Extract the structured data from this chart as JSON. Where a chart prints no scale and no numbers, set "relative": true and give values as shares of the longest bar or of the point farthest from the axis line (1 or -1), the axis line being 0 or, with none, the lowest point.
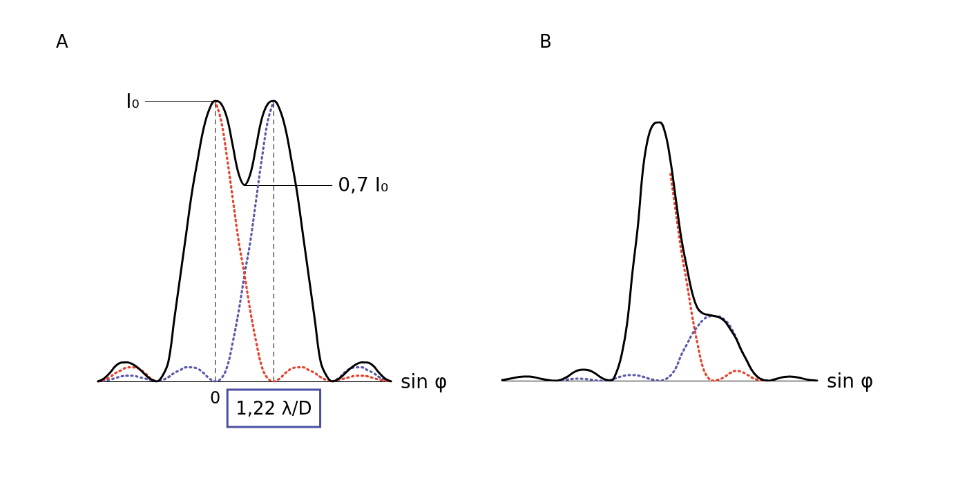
{
  "chart_data": [
    {
      "type": "line",
      "title": "A",
      "xlabel": "sin φ",
      "relative": true,
      "marker": "none",
      "categories": [
        null,
        null,
        null,
        null,
        null,
        null,
        null,
        null,
        null,
        null,
        null,
        null,
        null,
        null,
        null,
        null,
        null,
        null,
        null,
        null,
        "0",
        null,
        null,
        null,
        null,
        null,
        null,
        null,
        null,
        null,
        "1,22 λ/D",
        null,
        null,
        null,
        null,
        null,
        null,
        null,
        null,
        null,
        null,
        null,
        null,
        null,
        null,
        null,
        null,
        null,
        null,
        null,
        null
      ],
      "series": [
        {
          "color": "#000000",
          "line_style": "solid",
          "values": [
            0,
            0.01,
            0.03,
            0.055,
            0.067,
            0.068,
            0.06,
            0.045,
            0.025,
            0.008,
            0,
            0.02,
            0.07,
            0.22,
            0.37,
            0.52,
            0.67,
            0.79,
            0.9,
            0.97,
            1,
            0.99,
            0.94,
            0.84,
            0.74,
            0.7,
            0.74,
            0.84,
            0.94,
            0.99,
            1,
            0.97,
            0.9,
            0.79,
            0.67,
            0.52,
            0.37,
            0.22,
            0.07,
            0.02,
            0,
            0.008,
            0.025,
            0.045,
            0.06,
            0.068,
            0.067,
            0.055,
            0.03,
            0.01,
            0
          ]
        },
        {
          "color": "#e8402a",
          "line_style": "dotted",
          "values": [
            0,
            0.005,
            0.015,
            0.03,
            0.04,
            0.05,
            0.05,
            0.045,
            0.03,
            0.01,
            0,
            null,
            null,
            null,
            null,
            null,
            null,
            null,
            null,
            null,
            1,
            0.93,
            0.8,
            0.65,
            0.5,
            0.38,
            0.25,
            0.14,
            0.05,
            0.01,
            0,
            0.01,
            0.03,
            0.045,
            0.05,
            0.05,
            0.04,
            0.03,
            0.015,
            0.005,
            0,
            0.005,
            0.01,
            0.015,
            0.02,
            0.02,
            0.018,
            0.012,
            0.006,
            0.002,
            0
          ]
        },
        {
          "color": "#5a5aaa",
          "line_style": "dotted",
          "values": [
            0,
            0.002,
            0.006,
            0.012,
            0.018,
            0.02,
            0.02,
            0.015,
            0.01,
            0.005,
            0,
            0.005,
            0.015,
            0.03,
            0.04,
            0.05,
            0.05,
            0.045,
            0.03,
            0.01,
            0,
            0.01,
            0.05,
            0.14,
            0.25,
            0.38,
            0.5,
            0.65,
            0.8,
            0.93,
            1,
            null,
            null,
            null,
            null,
            null,
            null,
            null,
            null,
            null,
            0,
            0.01,
            0.03,
            0.045,
            0.05,
            0.05,
            0.04,
            0.03,
            0.015,
            0.005,
            0
          ]
        }
      ],
      "ref_lines": [
        {
          "axis": "x",
          "value": "0",
          "line_style": "dashed"
        },
        {
          "axis": "x",
          "value": "1,22 λ/D",
          "line_style": "dashed"
        }
      ],
      "annotations": [
        "I₀",
        "0,7 I₀"
      ]
    },
    {
      "type": "line",
      "title": "B",
      "xlabel": "sin φ",
      "relative": true,
      "marker": "none",
      "categories": [
        null,
        null,
        null,
        null,
        null,
        null,
        null,
        null,
        null,
        null,
        null,
        null,
        null,
        null,
        null,
        null,
        null,
        null,
        null,
        null,
        null,
        null,
        null,
        null,
        null,
        null,
        null,
        null,
        null,
        null,
        null,
        null,
        null,
        null,
        null,
        null,
        null,
        null,
        null,
        null,
        null,
        null,
        null,
        null,
        null,
        null,
        null,
        null,
        null,
        null,
        null,
        null,
        null,
        null,
        null,
        null,
        null,
        null,
        null
      ],
      "series": [
        {
          "color": "#000000",
          "line_style": "solid",
          "values": [
            0.002,
            0.006,
            0.01,
            0.014,
            0.016,
            0.016,
            0.013,
            0.008,
            0.004,
            0.001,
            0,
            0.005,
            0.015,
            0.03,
            0.04,
            0.043,
            0.04,
            0.03,
            0.015,
            0.004,
            0,
            0.03,
            0.1,
            0.22,
            0.42,
            0.6,
            0.83,
            0.95,
            0.995,
            1,
            0.96,
            0.85,
            0.7,
            0.55,
            0.44,
            0.34,
            0.28,
            0.26,
            0.255,
            0.25,
            0.245,
            0.23,
            0.2,
            0.166,
            0.12,
            0.08,
            0.04,
            0.015,
            0.003,
            0,
            0.004,
            0.01,
            0.015,
            0.016,
            0.014,
            0.01,
            0.005,
            0.002,
            0
          ]
        },
        {
          "color": "#e8402a",
          "line_style": "dotted",
          "values": [
            null,
            null,
            null,
            null,
            null,
            null,
            null,
            null,
            null,
            null,
            null,
            null,
            null,
            null,
            null,
            null,
            null,
            null,
            null,
            null,
            null,
            null,
            null,
            null,
            null,
            null,
            null,
            null,
            null,
            null,
            null,
            0.8,
            0.65,
            0.5,
            0.38,
            0.25,
            0.14,
            0.05,
            0.01,
            0,
            0.005,
            0.015,
            0.03,
            0.038,
            0.035,
            0.025,
            0.012,
            0.004,
            0,
            null,
            null,
            null,
            null,
            null,
            null,
            null,
            null,
            null,
            null
          ]
        },
        {
          "color": "#5a5aaa",
          "line_style": "dotted",
          "values": [
            null,
            null,
            null,
            null,
            null,
            null,
            null,
            null,
            null,
            null,
            null,
            0,
            0.004,
            0.007,
            0.008,
            0.007,
            0.005,
            0.002,
            0,
            0,
            0.003,
            0.01,
            0.017,
            0.021,
            0.022,
            0.02,
            0.015,
            0.008,
            0.003,
            0,
            0.005,
            0.02,
            0.05,
            0.1,
            0.14,
            0.18,
            0.21,
            0.235,
            0.248,
            0.25,
            0.248,
            0.235,
            0.21,
            0.17,
            0.12,
            0.08,
            0.04,
            0.015,
            0.004,
            0,
            null,
            null,
            null,
            null,
            null,
            null,
            null,
            null,
            null
          ]
        }
      ]
    }
  ]
}
